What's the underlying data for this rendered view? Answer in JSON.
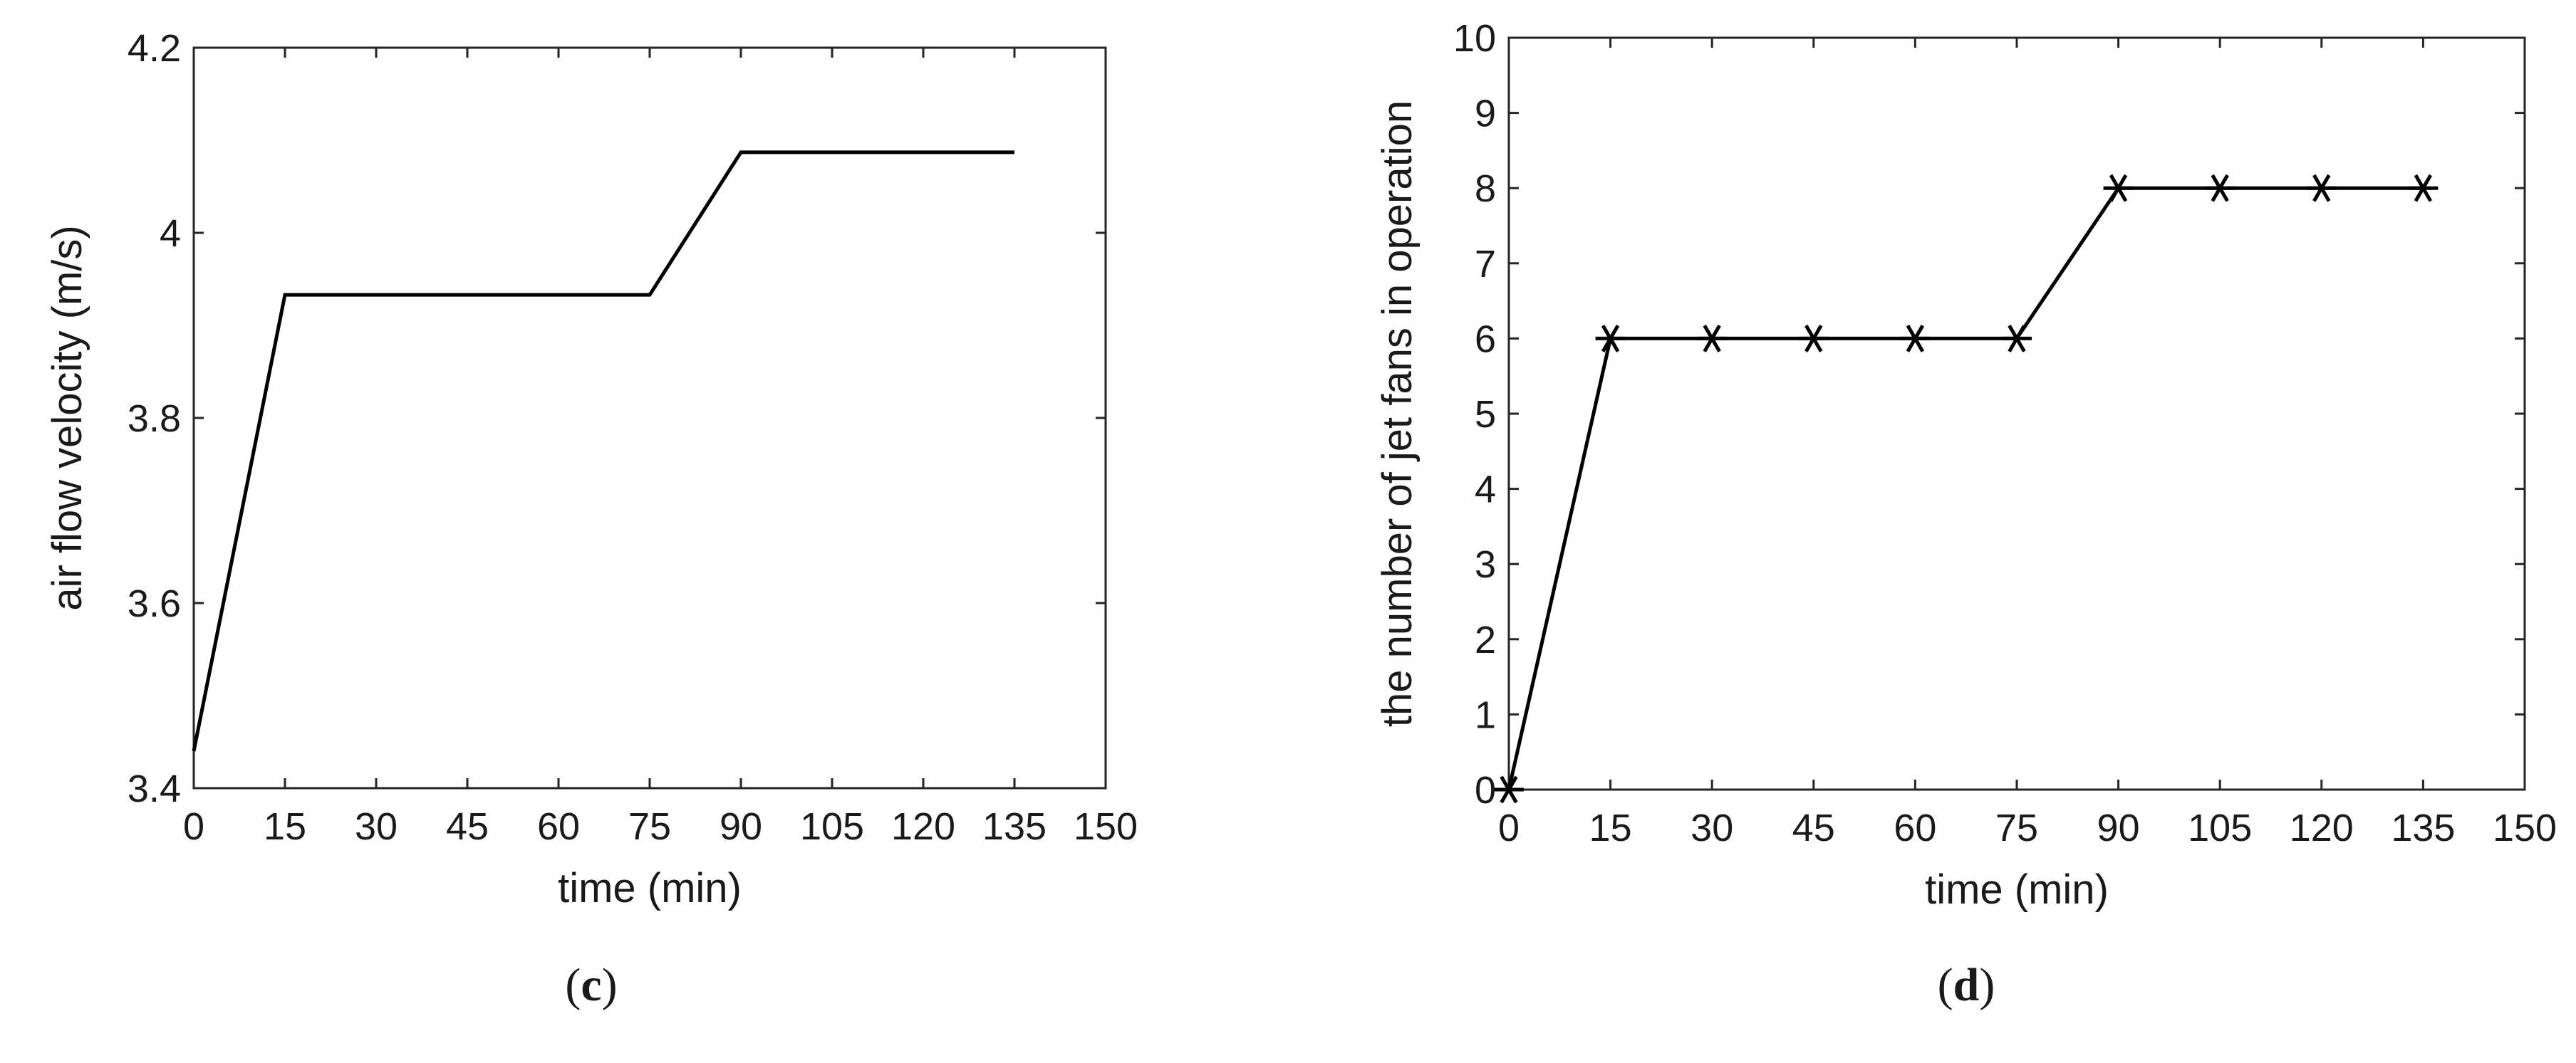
{
  "chart_data": [
    {
      "type": "line",
      "panel": "c",
      "caption": {
        "open": "(",
        "letter": "c",
        "close": ")"
      },
      "title": "",
      "xlabel": "time (min)",
      "ylabel": "air flow velocity (m/s)",
      "xlim": [
        0,
        150
      ],
      "ylim": [
        3.4,
        4.2
      ],
      "xticks": [
        "0",
        "15",
        "30",
        "45",
        "60",
        "75",
        "90",
        "105",
        "120",
        "135",
        "150"
      ],
      "yticks": [
        "3.4",
        "3.6",
        "3.8",
        "4",
        "4.2"
      ],
      "grid": false,
      "color": "#000000",
      "series": [
        {
          "x": [
            0,
            15,
            75,
            90,
            135
          ],
          "y": [
            3.44,
            3.933,
            3.933,
            4.087,
            4.087
          ],
          "markers": false
        }
      ]
    },
    {
      "type": "line",
      "panel": "d",
      "caption": {
        "open": "(",
        "letter": "d",
        "close": ")"
      },
      "title": "",
      "xlabel": "time (min)",
      "ylabel": "the number of jet fans in operation",
      "xlim": [
        0,
        150
      ],
      "ylim": [
        0,
        10
      ],
      "xticks": [
        "0",
        "15",
        "30",
        "45",
        "60",
        "75",
        "90",
        "105",
        "120",
        "135",
        "150"
      ],
      "yticks": [
        "0",
        "1",
        "2",
        "3",
        "4",
        "5",
        "6",
        "7",
        "8",
        "9",
        "10"
      ],
      "grid": false,
      "color": "#000000",
      "series": [
        {
          "x": [
            0,
            15,
            30,
            45,
            60,
            75,
            90,
            105,
            120,
            135
          ],
          "y": [
            0,
            6,
            6,
            6,
            6,
            6,
            8,
            8,
            8,
            8
          ],
          "markers": true,
          "marker": "asterisk"
        }
      ]
    }
  ]
}
